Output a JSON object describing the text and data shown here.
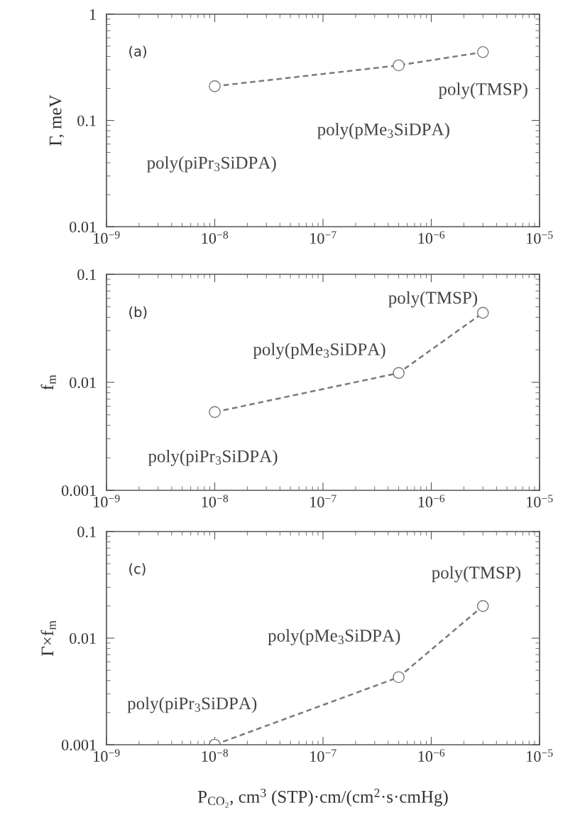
{
  "chart_data": [
    {
      "type": "line",
      "ylabel": "Γ, meV",
      "x": [
        1e-08,
        5e-07,
        3e-06
      ],
      "series": [
        {
          "color": "#7a7a7a",
          "values": [
            0.21,
            0.33,
            0.44
          ]
        }
      ],
      "marker": "circle",
      "line_style": "dashed",
      "log": "xy",
      "grid": false,
      "xlim": [
        1e-09,
        1e-05
      ],
      "ylim": [
        0.01,
        1
      ],
      "xticks": [
        {
          "value": 1e-09,
          "label": "10$^{−9}$"
        },
        {
          "value": 1e-08,
          "label": "10$^{−8}$"
        },
        {
          "value": 1e-07,
          "label": "10$^{−7}$"
        },
        {
          "value": 1e-06,
          "label": "10$^{−6}$"
        },
        {
          "value": 1e-05,
          "label": "10$^{−5}$"
        }
      ],
      "yticks": [
        0.01,
        0.1,
        1
      ],
      "annotations": [
        "(a)",
        "poly(piPr$_{3}$SiDPA)",
        "poly(pMe$_{3}$SiDPA)",
        "poly(TMSP)"
      ]
    },
    {
      "type": "line",
      "ylabel": "f$_{m}$",
      "x": [
        1e-08,
        5e-07,
        3e-06
      ],
      "series": [
        {
          "color": "#7a7a7a",
          "values": [
            0.0053,
            0.0122,
            0.044
          ]
        }
      ],
      "marker": "circle",
      "line_style": "dashed",
      "log": "xy",
      "grid": false,
      "xlim": [
        1e-09,
        1e-05
      ],
      "ylim": [
        0.001,
        0.1
      ],
      "xticks": [
        {
          "value": 1e-09,
          "label": "10$^{−9}$"
        },
        {
          "value": 1e-08,
          "label": "10$^{−8}$"
        },
        {
          "value": 1e-07,
          "label": "10$^{−7}$"
        },
        {
          "value": 1e-06,
          "label": "10$^{−6}$"
        },
        {
          "value": 1e-05,
          "label": "10$^{−5}$"
        }
      ],
      "yticks": [
        0.001,
        0.01,
        0.1
      ],
      "annotations": [
        "(b)",
        "poly(piPr$_{3}$SiDPA)",
        "poly(pMe$_{3}$SiDPA)",
        "poly(TMSP)"
      ]
    },
    {
      "type": "line",
      "ylabel": "Γ×f$_{m}$",
      "xlabel": "P$_{CO₂}$, cm$^{3}$ (STP)·cm/(cm$^{2}$·s·cmHg)",
      "x": [
        1e-08,
        5e-07,
        3e-06
      ],
      "series": [
        {
          "color": "#7a7a7a",
          "values": [
            0.001,
            0.0043,
            0.02
          ]
        }
      ],
      "marker": "circle",
      "line_style": "dashed",
      "log": "xy",
      "grid": false,
      "xlim": [
        1e-09,
        1e-05
      ],
      "ylim": [
        0.001,
        0.1
      ],
      "xticks": [
        {
          "value": 1e-09,
          "label": "10$^{−9}$"
        },
        {
          "value": 1e-08,
          "label": "10$^{−8}$"
        },
        {
          "value": 1e-07,
          "label": "10$^{−7}$"
        },
        {
          "value": 1e-06,
          "label": "10$^{−6}$"
        },
        {
          "value": 1e-05,
          "label": "10$^{−5}$"
        }
      ],
      "yticks": [
        0.001,
        0.01,
        0.1
      ],
      "annotations": [
        "(c)",
        "poly(piPr$_{3}$SiDPA)",
        "poly(pMe$_{3}$SiDPA)",
        "poly(TMSP)"
      ]
    }
  ]
}
